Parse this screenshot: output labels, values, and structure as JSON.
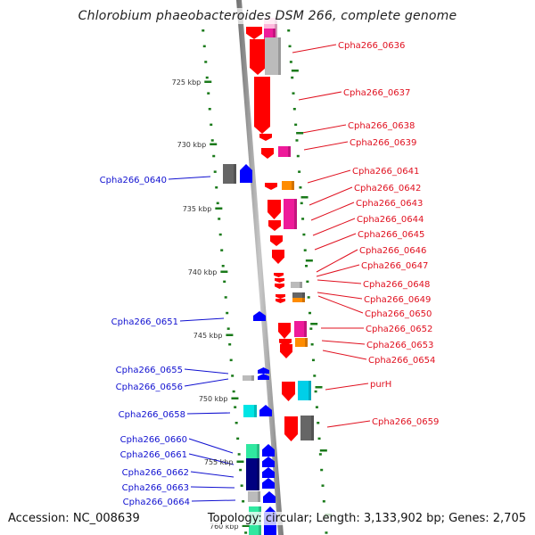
{
  "title": "Chlorobium phaeobacteroides DSM 266, complete genome",
  "accession": "Accession: NC_008639",
  "summary": "Topology: circular; Length: 3,133,902 bp; Genes: 2,705",
  "colors": {
    "forward_label": "#e0101f",
    "reverse_label": "#1010d0",
    "ruler": "#1a7a1a",
    "backbone": "#8a8a8a"
  },
  "ruler_ticks": [
    {
      "label": "725 kbp",
      "kbp": 725
    },
    {
      "label": "730 kbp",
      "kbp": 730
    },
    {
      "label": "735 kbp",
      "kbp": 735
    },
    {
      "label": "740 kbp",
      "kbp": 740
    },
    {
      "label": "745 kbp",
      "kbp": 745
    },
    {
      "label": "750 kbp",
      "kbp": 750
    },
    {
      "label": "755 kbp",
      "kbp": 755
    },
    {
      "label": "760 kbp",
      "kbp": 760
    }
  ],
  "forward_genes": [
    {
      "label": "Cpha266_0636"
    },
    {
      "label": "Cpha266_0637"
    },
    {
      "label": "Cpha266_0638"
    },
    {
      "label": "Cpha266_0639"
    },
    {
      "label": "Cpha266_0641"
    },
    {
      "label": "Cpha266_0642"
    },
    {
      "label": "Cpha266_0643"
    },
    {
      "label": "Cpha266_0644"
    },
    {
      "label": "Cpha266_0645"
    },
    {
      "label": "Cpha266_0646"
    },
    {
      "label": "Cpha266_0647"
    },
    {
      "label": "Cpha266_0648"
    },
    {
      "label": "Cpha266_0649"
    },
    {
      "label": "Cpha266_0650"
    },
    {
      "label": "Cpha266_0652"
    },
    {
      "label": "Cpha266_0653"
    },
    {
      "label": "Cpha266_0654"
    },
    {
      "label": "purH"
    },
    {
      "label": "Cpha266_0659"
    }
  ],
  "reverse_genes": [
    {
      "label": "Cpha266_0640"
    },
    {
      "label": "Cpha266_0651"
    },
    {
      "label": "Cpha266_0655"
    },
    {
      "label": "Cpha266_0656"
    },
    {
      "label": "Cpha266_0658"
    },
    {
      "label": "Cpha266_0660"
    },
    {
      "label": "Cpha266_0661"
    },
    {
      "label": "Cpha266_0662"
    },
    {
      "label": "Cpha266_0663"
    },
    {
      "label": "Cpha266_0664"
    }
  ]
}
